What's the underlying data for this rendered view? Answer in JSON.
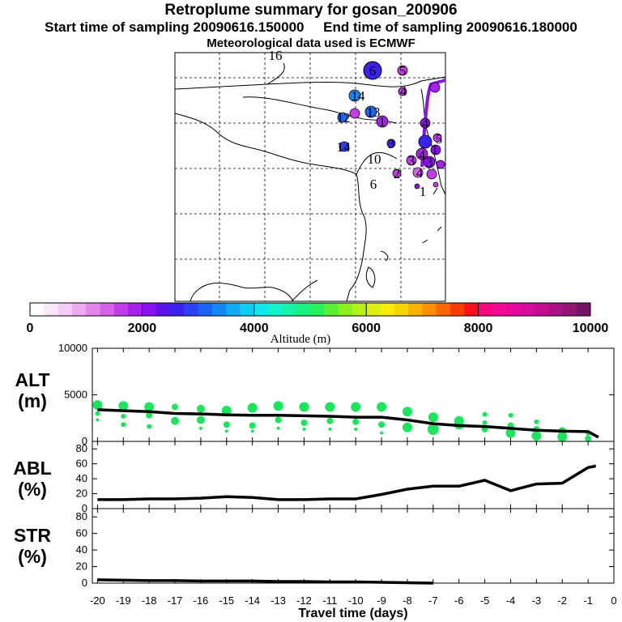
{
  "header": {
    "title": "Retroplume summary for gosan_200906",
    "start_time": "Start time of sampling 20090616.150000",
    "end_time": "End time of sampling 20090616.180000",
    "met_data": "Meteorological data used is ECMWF"
  },
  "map": {
    "day_labels": [
      "16",
      "6",
      "5",
      "14",
      "4",
      "12",
      "13",
      "1",
      "4",
      "14",
      "3",
      "10",
      "5",
      "6",
      "4",
      "3",
      "3",
      "1",
      "2",
      "4",
      "1"
    ]
  },
  "colorbar": {
    "ticks": [
      "0",
      "2000",
      "4000",
      "6000",
      "8000",
      "10000"
    ],
    "label": "Altitude (m)",
    "colors": [
      "#ffffff",
      "#fbe6fb",
      "#f5ccf5",
      "#eeaaee",
      "#e286ea",
      "#d463e6",
      "#c23ce8",
      "#a820ec",
      "#8a10f0",
      "#5a14e8",
      "#3a22ee",
      "#2c40f4",
      "#1c64f6",
      "#1288f4",
      "#10aaf0",
      "#10ccf0",
      "#12e8ec",
      "#14f2cc",
      "#16f2a6",
      "#18f080",
      "#28f05a",
      "#58f034",
      "#8cf020",
      "#b8f018",
      "#dcf010",
      "#f6ec08",
      "#f6d400",
      "#f8b200",
      "#f88e00",
      "#f86800",
      "#f83c00",
      "#f8101c",
      "#f8087a",
      "#f40a96",
      "#e80a9e",
      "#d80c9a",
      "#c00e8e",
      "#a81282",
      "#901474",
      "#741466"
    ]
  },
  "chart_data": [
    {
      "type": "line",
      "panel": "ALT",
      "ylabel": "ALT",
      "yunit": "(m)",
      "ylim": [
        0,
        10000
      ],
      "yticks": [
        "0",
        "5000",
        "10000"
      ],
      "x": [
        -20,
        -19,
        -18,
        -17,
        -16,
        -15,
        -14,
        -13,
        -12,
        -11,
        -10,
        -9,
        -8,
        -7,
        -6,
        -5,
        -4,
        -3,
        -2,
        -1,
        -0.6
      ],
      "series": [
        {
          "name": "mean altitude",
          "values": [
            3400,
            3300,
            3200,
            3000,
            2950,
            2850,
            2800,
            2800,
            2750,
            2700,
            2600,
            2600,
            2300,
            1900,
            1700,
            1600,
            1400,
            1200,
            1100,
            1050,
            450
          ]
        }
      ],
      "scatter_color": "#19e65a",
      "scatter": [
        {
          "x": -20,
          "y": 3900,
          "s": 6
        },
        {
          "x": -20,
          "y": 3000,
          "s": 3
        },
        {
          "x": -20,
          "y": 2300,
          "s": 2
        },
        {
          "x": -19,
          "y": 3800,
          "s": 6
        },
        {
          "x": -19,
          "y": 2700,
          "s": 3
        },
        {
          "x": -19,
          "y": 1800,
          "s": 3
        },
        {
          "x": -18,
          "y": 3700,
          "s": 6
        },
        {
          "x": -18,
          "y": 2800,
          "s": 4
        },
        {
          "x": -18,
          "y": 1600,
          "s": 3
        },
        {
          "x": -17,
          "y": 3700,
          "s": 4
        },
        {
          "x": -17,
          "y": 2200,
          "s": 5
        },
        {
          "x": -16,
          "y": 3500,
          "s": 5
        },
        {
          "x": -16,
          "y": 2300,
          "s": 5
        },
        {
          "x": -16,
          "y": 1400,
          "s": 2
        },
        {
          "x": -15,
          "y": 3300,
          "s": 6
        },
        {
          "x": -15,
          "y": 1800,
          "s": 4
        },
        {
          "x": -15,
          "y": 1100,
          "s": 2
        },
        {
          "x": -14,
          "y": 3600,
          "s": 6
        },
        {
          "x": -14,
          "y": 1700,
          "s": 4
        },
        {
          "x": -14,
          "y": 1100,
          "s": 2
        },
        {
          "x": -13,
          "y": 3800,
          "s": 6
        },
        {
          "x": -13,
          "y": 2300,
          "s": 4
        },
        {
          "x": -13,
          "y": 1400,
          "s": 2
        },
        {
          "x": -12,
          "y": 3700,
          "s": 6
        },
        {
          "x": -12,
          "y": 2000,
          "s": 4
        },
        {
          "x": -12,
          "y": 1300,
          "s": 2
        },
        {
          "x": -11,
          "y": 3700,
          "s": 6
        },
        {
          "x": -11,
          "y": 2200,
          "s": 4
        },
        {
          "x": -11,
          "y": 1300,
          "s": 2
        },
        {
          "x": -10,
          "y": 3700,
          "s": 6
        },
        {
          "x": -10,
          "y": 2100,
          "s": 4
        },
        {
          "x": -10,
          "y": 1300,
          "s": 2
        },
        {
          "x": -9,
          "y": 3700,
          "s": 6
        },
        {
          "x": -9,
          "y": 1800,
          "s": 4
        },
        {
          "x": -9,
          "y": 900,
          "s": 2
        },
        {
          "x": -8,
          "y": 3200,
          "s": 6
        },
        {
          "x": -8,
          "y": 1500,
          "s": 6
        },
        {
          "x": -7,
          "y": 2600,
          "s": 6
        },
        {
          "x": -7,
          "y": 1300,
          "s": 7
        },
        {
          "x": -6,
          "y": 2200,
          "s": 6
        },
        {
          "x": -6,
          "y": 1800,
          "s": 6
        },
        {
          "x": -5,
          "y": 2900,
          "s": 3
        },
        {
          "x": -5,
          "y": 2000,
          "s": 3
        },
        {
          "x": -5,
          "y": 1300,
          "s": 4
        },
        {
          "x": -4,
          "y": 2800,
          "s": 3
        },
        {
          "x": -4,
          "y": 1700,
          "s": 4
        },
        {
          "x": -4,
          "y": 900,
          "s": 6
        },
        {
          "x": -3,
          "y": 2100,
          "s": 3
        },
        {
          "x": -3,
          "y": 1300,
          "s": 4
        },
        {
          "x": -3,
          "y": 600,
          "s": 6
        },
        {
          "x": -2,
          "y": 1100,
          "s": 5
        },
        {
          "x": -2,
          "y": 500,
          "s": 6
        },
        {
          "x": -1,
          "y": 900,
          "s": 3
        },
        {
          "x": -1,
          "y": 300,
          "s": 4
        }
      ]
    },
    {
      "type": "line",
      "panel": "ABL",
      "ylabel": "ABL",
      "yunit": "(%)",
      "ylim": [
        0,
        90
      ],
      "yticks": [
        "0",
        "20",
        "40",
        "60",
        "80"
      ],
      "x": [
        -20,
        -19,
        -18,
        -17,
        -16,
        -15,
        -14,
        -13,
        -12,
        -11,
        -10,
        -9,
        -8,
        -7,
        -6,
        -5,
        -4,
        -3,
        -2,
        -1,
        -0.7
      ],
      "series": [
        {
          "name": "fraction in ABL",
          "values": [
            12,
            12,
            13,
            13,
            14,
            16,
            15,
            12,
            12,
            13,
            13,
            19,
            26,
            30,
            30,
            38,
            24,
            33,
            34,
            55,
            57
          ]
        }
      ]
    },
    {
      "type": "line",
      "panel": "STR",
      "ylabel": "STR",
      "yunit": "(%)",
      "ylim": [
        0,
        90
      ],
      "yticks": [
        "0",
        "20",
        "40",
        "60",
        "80"
      ],
      "x": [
        -20,
        -19,
        -18,
        -17,
        -16,
        -15,
        -14,
        -13,
        -12,
        -11,
        -10,
        -9,
        -8,
        -7
      ],
      "series": [
        {
          "name": "fraction in stratosphere",
          "values": [
            4,
            3.5,
            3,
            3,
            2.5,
            2.5,
            2.5,
            2,
            2,
            1.5,
            1.5,
            1,
            0.5,
            0
          ]
        }
      ],
      "xlabel": "Travel time (days)",
      "xticks": [
        "-20",
        "-19",
        "-18",
        "-17",
        "-16",
        "-15",
        "-14",
        "-13",
        "-12",
        "-11",
        "-10",
        "-9",
        "-8",
        "-7",
        "-6",
        "-5",
        "-4",
        "-3",
        "-2",
        "-1",
        "0"
      ]
    }
  ]
}
